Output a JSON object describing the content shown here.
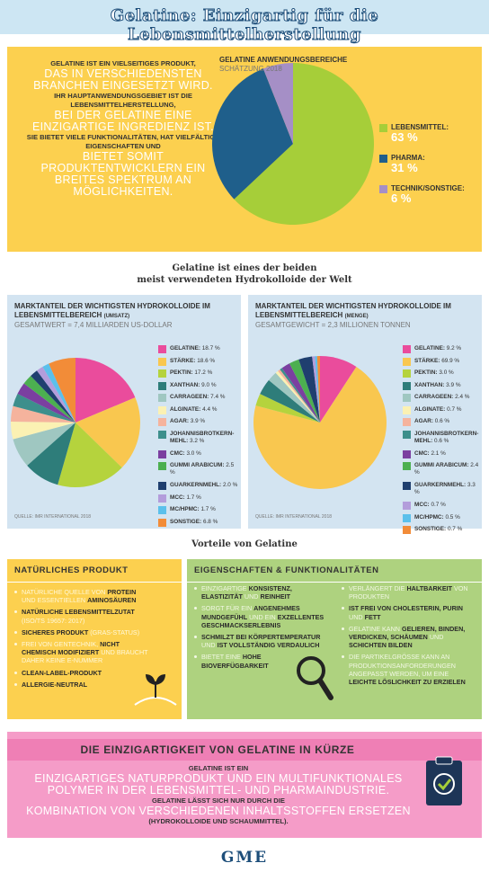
{
  "header": {
    "title": "Gelatine: Einzigartig für die Lebensmittelherstellung"
  },
  "intro": {
    "lines": [
      {
        "small": "GELATINE IST EIN VIELSEITIGES PRODUKT,"
      },
      {
        "big": "DAS IN VERSCHIEDENSTEN BRANCHEN EINGESETZT WIRD."
      },
      {
        "small": "IHR HAUPTANWENDUNGSGEBIET IST DIE LEBENSMITTELHERSTELLUNG,"
      },
      {
        "big": "BEI DER GELATINE EINE EINZIGARTIGE INGREDIENZ IST."
      },
      {
        "small": "SIE BIETET VIELE FUNKTIONALITÄTEN, HAT VIELFÄLTIGE EIGENSCHAFTEN UND"
      },
      {
        "big": "BIETET SOMIT PRODUKTENTWICKLERN EIN BREITES SPEKTRUM AN MÖGLICHKEITEN."
      }
    ]
  },
  "banner": {
    "line1": "Gelatine ist eines der beiden",
    "line2": "meist verwendeten Hydrokolloide der Welt"
  },
  "chart_data": [
    {
      "type": "pie",
      "title": "GELATINE ANWENDUNGSBEREICHE",
      "subtitle": "SCHÄTZUNG 2018",
      "categories": [
        "LEBENSMITTEL:",
        "PHARMA:",
        "TECHNIK/SONSTIGE:"
      ],
      "values": [
        63,
        31,
        6
      ],
      "value_labels": [
        "63 %",
        "31 %",
        "6 %"
      ],
      "colors": [
        "#a6ce39",
        "#1f5f8b",
        "#a58fc6"
      ]
    },
    {
      "type": "pie",
      "title": "MARKTANTEIL DER WICHTIGSTEN HYDROKOLLOIDE IM LEBENSMITTELBEREICH",
      "title_note": "(UMSATZ)",
      "subtitle": "GESAMTWERT = 7,4 MILLIARDEN US-DOLLAR",
      "source": "QUELLE: IMR INTERNATIONAL 2018",
      "categories": [
        "GELATINE:",
        "STÄRKE:",
        "PEKTIN:",
        "XANTHAN:",
        "CARRAGEEN:",
        "ALGINATE:",
        "AGAR:",
        "JOHANNISBROTKERN-MEHL:",
        "CMC:",
        "GUMMI ARABICUM:",
        "GUARKERNMEHL:",
        "MCC:",
        "MC/HPMC:",
        "SONSTIGE:"
      ],
      "values": [
        18.7,
        18.6,
        17.2,
        9.0,
        7.4,
        4.4,
        3.9,
        3.2,
        3.0,
        2.5,
        2.0,
        1.7,
        1.7,
        6.8
      ],
      "value_labels": [
        "18.7 %",
        "18.6 %",
        "17.2 %",
        "9.0 %",
        "7.4 %",
        "4.4 %",
        "3.9 %",
        "3.2 %",
        "3.0 %",
        "2.5 %",
        "2.0 %",
        "1.7 %",
        "1.7 %",
        "6.8 %"
      ],
      "colors": [
        "#ea4c9c",
        "#f9c74f",
        "#b5d33d",
        "#2e7d7a",
        "#9fc7c1",
        "#fbf1b3",
        "#f5b39d",
        "#3d8f8c",
        "#7b3fa0",
        "#4caf50",
        "#1f3f6f",
        "#b39ddb",
        "#5bc0eb",
        "#f28c38"
      ]
    },
    {
      "type": "pie",
      "title": "MARKTANTEIL DER WICHTIGSTEN HYDROKOLLOIDE IM LEBENSMITTELBEREICH",
      "title_note": "(MENGE)",
      "subtitle": "GESAMTGEWICHT = 2,3 MILLIONEN TONNEN",
      "source": "QUELLE: IMR INTERNATIONAL 2018",
      "categories": [
        "GELATINE:",
        "STÄRKE:",
        "PEKTIN:",
        "XANTHAN:",
        "CARRAGEEN:",
        "ALGINATE:",
        "AGAR:",
        "JOHANNISBROTKERN-MEHL:",
        "CMC:",
        "GUMMI ARABICUM:",
        "GUARKERNMEHL:",
        "MCC:",
        "MC/HPMC:",
        "SONSTIGE:"
      ],
      "values": [
        9.2,
        69.9,
        3.0,
        3.9,
        2.4,
        0.7,
        0.6,
        0.6,
        2.1,
        2.4,
        3.3,
        0.7,
        0.5,
        0.7
      ],
      "value_labels": [
        "9.2 %",
        "69.9 %",
        "3.0 %",
        "3.9 %",
        "2.4 %",
        "0.7 %",
        "0.6 %",
        "0.6 %",
        "2.1 %",
        "2.4 %",
        "3.3 %",
        "0.7 %",
        "0.5 %",
        "0.7 %"
      ],
      "colors": [
        "#ea4c9c",
        "#f9c74f",
        "#b5d33d",
        "#2e7d7a",
        "#9fc7c1",
        "#fbf1b3",
        "#f5b39d",
        "#3d8f8c",
        "#7b3fa0",
        "#4caf50",
        "#1f3f6f",
        "#b39ddb",
        "#5bc0eb",
        "#f28c38"
      ]
    }
  ],
  "advantages": {
    "title": "Vorteile von Gelatine",
    "natural": {
      "title": "NATÜRLICHES PRODUKT",
      "items": [
        [
          "NATÜRLICHE QUELLE VON ",
          {
            "b": "PROTEIN"
          },
          " UND ESSENTIELLEN ",
          {
            "b": "AMINOSÄUREN"
          }
        ],
        [
          {
            "b": "NATÜRLICHE LEBENSMITTELZUTAT"
          },
          " (ISO/TS 19657: 2017)"
        ],
        [
          {
            "b": "SICHERES PRODUKT"
          },
          " (GRAS-STATUS)"
        ],
        [
          "FREI VON GENTECHNIK, ",
          {
            "b": "NICHT CHEMISCH MODIFIZIERT"
          },
          " UND BRAUCHT DAHER KEINE E-NUMMER"
        ],
        [
          {
            "b": "CLEAN-LABEL-PRODUKT"
          }
        ],
        [
          {
            "b": "ALLERGIE-NEUTRAL"
          }
        ]
      ]
    },
    "properties": {
      "title": "EIGENSCHAFTEN & FUNKTIONALITÄTEN",
      "col1": [
        [
          "EINZIGARTIGE ",
          {
            "b": "KONSISTENZ, ELASTIZITÄT"
          },
          " UND ",
          {
            "b": "REINHEIT"
          }
        ],
        [
          "SORGT FÜR EIN ",
          {
            "b": "ANGENEHMES MUNDGEFÜHL"
          },
          " UND EIN ",
          {
            "b": "EXZELLENTES GESCHMACKSERLEBNIS"
          }
        ],
        [
          {
            "b": "SCHMILZT BEI KÖRPERTEMPERATUR"
          },
          " UND ",
          {
            "b": "IST VOLLSTÄNDIG VERDAULICH"
          }
        ],
        [
          "BIETET EINE ",
          {
            "b": "HOHE BIOVERFÜGBARKEIT"
          }
        ]
      ],
      "col2": [
        [
          "VERLÄNGERT DIE ",
          {
            "b": "HALTBARKEIT"
          },
          " VON PRODUKTEN"
        ],
        [
          {
            "b": "IST FREI VON CHOLESTERIN, PURIN"
          },
          " UND ",
          {
            "b": "FETT"
          }
        ],
        [
          "GELATINE KANN ",
          {
            "b": "GELIEREN, BINDEN, VERDICKEN, SCHÄUMEN"
          },
          " UND ",
          {
            "b": "SCHICHTEN BILDEN"
          }
        ],
        [
          "DIE PARTIKELGRÖSSE KANN AN PRODUKTIONSANFORDERUNGEN ANGEPASST WERDEN, UM EINE ",
          {
            "b": "LEICHTE LÖSLICHKEIT ZU ERZIELEN"
          }
        ]
      ]
    }
  },
  "summary": {
    "title": "DIE EINZIGARTIGKEIT VON GELATINE IN KÜRZE",
    "lines": [
      {
        "small": "GELATINE IST EIN"
      },
      {
        "big": "EINZIGARTIGES NATURPRODUKT UND EIN MULTIFUNKTIONALES POLYMER IN DER LEBENSMITTEL- UND PHARMAINDUSTRIE."
      },
      {
        "small": "GELATINE LÄSST SICH NUR DURCH DIE"
      },
      {
        "big": "KOMBINATION VON VERSCHIEDENEN INHALTSSTOFFEN ERSETZEN"
      },
      {
        "small": "(HYDROKOLLOIDE UND SCHAUMMITTEL)."
      }
    ]
  },
  "footer": {
    "logo": "GME"
  }
}
